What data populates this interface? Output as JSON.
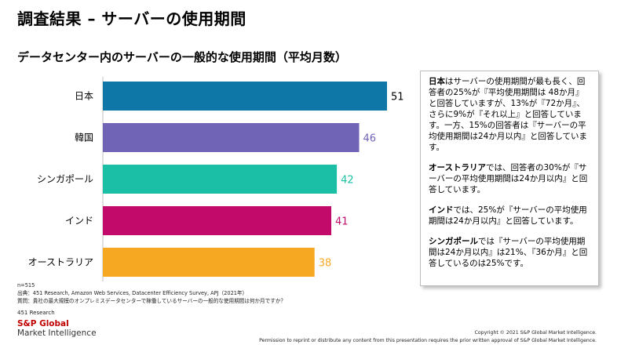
{
  "title": "調査結果 – サーバーの使用期間",
  "colors": {
    "japan": "#0E77A8",
    "korea": "#6F64B6",
    "singapore": "#1ABFA5",
    "india": "#C10A6A",
    "australia": "#F7A823"
  },
  "chart_data": {
    "type": "bar",
    "orientation": "horizontal",
    "title": "データセンター内のサーバーの一般的な使用期間（平均月数）",
    "categories": [
      "日本",
      "韓国",
      "シンガポール",
      "インド",
      "オーストラリア"
    ],
    "values": [
      51,
      46,
      42,
      41,
      38
    ],
    "value_labels": [
      "51",
      "46",
      "42",
      "41",
      "38"
    ],
    "bar_colors": [
      "#0E77A8",
      "#6F64B6",
      "#1ABFA5",
      "#C10A6A",
      "#F7A823"
    ],
    "label_colors": [
      "#000000",
      "#6F64B6",
      "#1ABFA5",
      "#C10A6A",
      "#F7A823"
    ],
    "xlim": [
      0,
      51
    ]
  },
  "panel": {
    "p1_bold": "日本",
    "p1_rest": "はサーバーの使用期間が最も長く、回答者の25%が『平均使用期間は 48か月』と回答していますが、13%が『72か月』、さらに9%が『それ以上』と回答しています。一方、15%の回答者は『サーバーの平均使用期間は24か月以内』と回答しています。",
    "p2_bold": "オーストラリア",
    "p2_rest": "では、回答者の30%が『サーバーの平均使用期間は24か月以内』と回答しています。",
    "p3_bold": "インド",
    "p3_rest": "では、25%が『サーバーの平均使用期間は24か月以内』と回答しています。",
    "p4_bold": "シンガポール",
    "p4_rest": "では『サーバーの平均使用期間は24か月以内』は21%、『36か月』と回答しているのは25%です。"
  },
  "notes": {
    "n": "n=515",
    "source": "出典：451 Research, Amazon Web Services, Datacenter Efficiency Survey, APJ（2021年）",
    "question": "質問：貴社の最大規模のオンプレミスデータセンターで稼働しているサーバーの一般的な使用期間は何か月ですか？"
  },
  "footer": {
    "research": "451 Research",
    "brand_line1": "S&P Global",
    "brand_line2": "Market Intelligence",
    "copyright": "Copyright © 2021 S&P Global Market Intelligence.",
    "permission": "Permission to reprint or distribute any content from this presentation requires the prior written approval of S&P Global Market Intelligence."
  }
}
